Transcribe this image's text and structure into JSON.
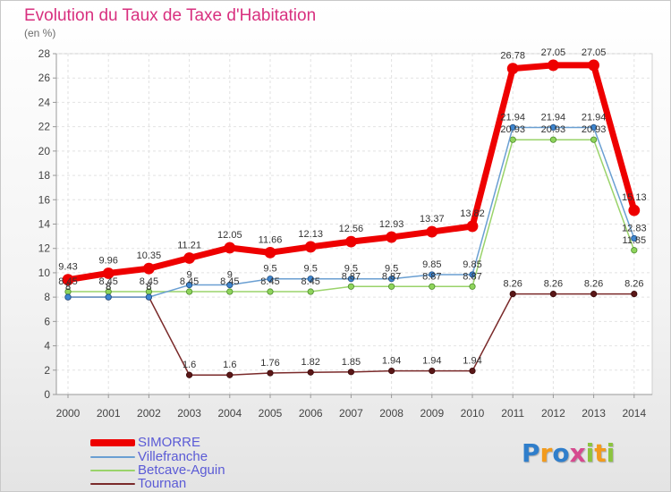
{
  "title": "Evolution du Taux de Taxe d'Habitation",
  "unit": "(en %)",
  "logo": {
    "text": "Proxiti",
    "colors": [
      "#2f7ecb",
      "#f29b1d",
      "#2f7ecb",
      "#d64a8f",
      "#8cc43f",
      "#f29b1d",
      "#8cc43f"
    ]
  },
  "chart_data": {
    "type": "line",
    "x": [
      "2000",
      "2001",
      "2002",
      "2003",
      "2004",
      "2005",
      "2006",
      "2007",
      "2008",
      "2009",
      "2010",
      "2011",
      "2012",
      "2013",
      "2014"
    ],
    "ylim": [
      0,
      28
    ],
    "yticks": [
      "0",
      "2",
      "4",
      "6",
      "8",
      "10",
      "12",
      "14",
      "16",
      "18",
      "20",
      "22",
      "24",
      "26",
      "28"
    ],
    "grid": true,
    "legend_position": "bottom-left",
    "series": [
      {
        "name": "SIMORRE",
        "color": "#ee0000",
        "values": [
          9.43,
          9.96,
          10.35,
          11.21,
          12.05,
          11.66,
          12.13,
          12.56,
          12.93,
          13.37,
          13.82,
          26.78,
          27.05,
          27.05,
          15.13
        ],
        "labels": [
          "9.43",
          "9.96",
          "10.35",
          "11.21",
          "12.05",
          "11.66",
          "12.13",
          "12.56",
          "12.93",
          "13.37",
          "13.82",
          "26.78",
          "27.05",
          "27.05",
          "15.13"
        ]
      },
      {
        "name": "Villefranche",
        "color": "#6a9fd2",
        "values": [
          8,
          8,
          8,
          9,
          9,
          9.5,
          9.5,
          9.5,
          9.5,
          9.85,
          9.85,
          21.94,
          21.94,
          21.94,
          12.83
        ],
        "labels": [
          "8",
          "8",
          "8",
          "9",
          "9",
          "9.5",
          "9.5",
          "9.5",
          "9.5",
          "9.85",
          "9.85",
          "21.94",
          "21.94",
          "21.94",
          "12.83"
        ]
      },
      {
        "name": "Betcave-Aguin",
        "color": "#9ad36a",
        "values": [
          8.45,
          8.45,
          8.45,
          8.45,
          8.45,
          8.45,
          8.45,
          8.87,
          8.87,
          8.87,
          8.87,
          20.93,
          20.93,
          20.93,
          11.85
        ],
        "labels": [
          "8.45",
          "8.45",
          "8.45",
          "8.45",
          "8.45",
          "8.45",
          "8.45",
          "8.87",
          "8.87",
          "8.87",
          "8.87",
          "20.93",
          "20.93",
          "20.93",
          "11.85"
        ]
      },
      {
        "name": "Tournan",
        "color": "#7a2a2a",
        "values": [
          8,
          8,
          8,
          1.6,
          1.6,
          1.76,
          1.82,
          1.85,
          1.94,
          1.94,
          1.94,
          8.26,
          8.26,
          8.26,
          8.26
        ],
        "labels": [
          "8",
          "8",
          "8",
          "1.6",
          "1.6",
          "1.76",
          "1.82",
          "1.85",
          "1.94",
          "1.94",
          "1.94",
          "8.26",
          "8.26",
          "8.26",
          "8.26"
        ]
      }
    ]
  }
}
